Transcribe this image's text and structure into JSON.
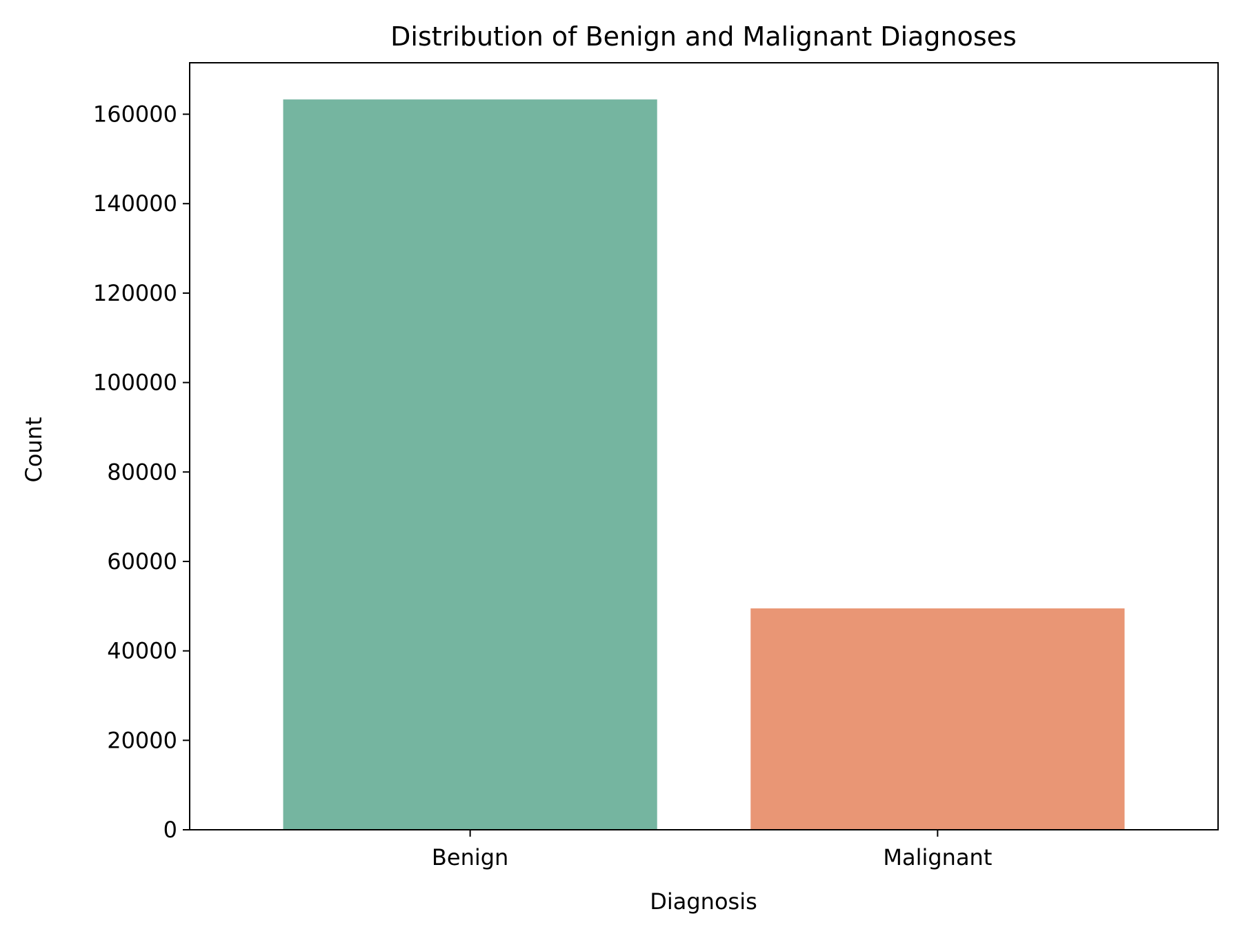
{
  "chart_data": {
    "type": "bar",
    "title": "Distribution of Benign and Malignant Diagnoses",
    "xlabel": "Diagnosis",
    "ylabel": "Count",
    "categories": [
      "Benign",
      "Malignant"
    ],
    "values": [
      163300,
      49500
    ],
    "colors": [
      "#75b5a0",
      "#e99675"
    ],
    "ylim": [
      0,
      171500
    ],
    "yticks": [
      0,
      20000,
      40000,
      60000,
      80000,
      100000,
      120000,
      140000,
      160000
    ],
    "ytick_labels": [
      "0",
      "20000",
      "40000",
      "60000",
      "80000",
      "100000",
      "120000",
      "140000",
      "160000"
    ],
    "grid": false,
    "legend": "none"
  }
}
